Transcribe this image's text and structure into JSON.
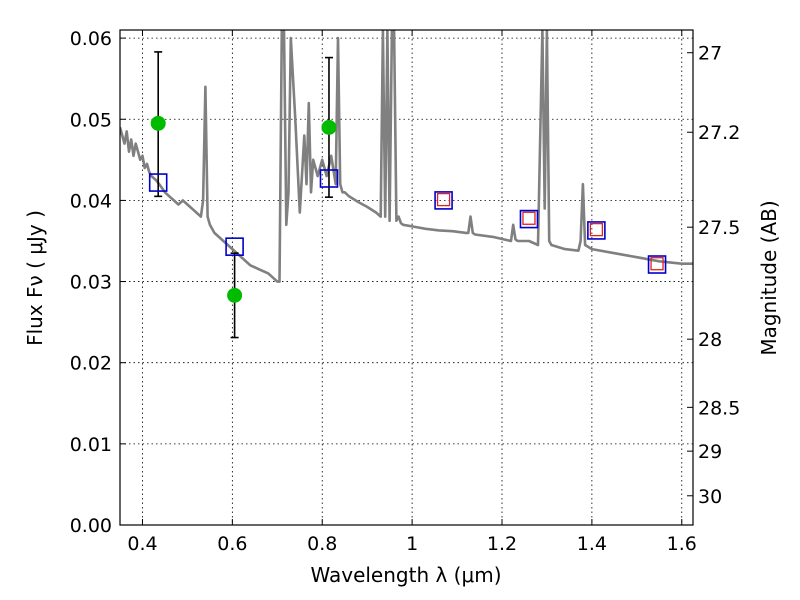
{
  "chart_data": {
    "type": "line",
    "xlabel": "Wavelength  λ (μm)",
    "ylabel": "Flux  Fν  ( μJy )",
    "y2label": "Magnitude (AB)",
    "xlim": [
      0.35,
      1.625
    ],
    "ylim": [
      0.0,
      0.061
    ],
    "grid": true,
    "x_ticks": [
      0.4,
      0.6,
      0.8,
      1.0,
      1.2,
      1.4,
      1.6
    ],
    "x_tick_labels": [
      "0.4",
      "0.6",
      "0.8",
      "1",
      "1.2",
      "1.4",
      "1.6"
    ],
    "y_ticks": [
      0.0,
      0.01,
      0.02,
      0.03,
      0.04,
      0.05,
      0.06
    ],
    "y_tick_labels": [
      "0.00",
      "0.01",
      "0.02",
      "0.03",
      "0.04",
      "0.05",
      "0.06"
    ],
    "y2_ticks": [
      {
        "label": "27",
        "flux": 0.0582
      },
      {
        "label": "27.2",
        "flux": 0.0484
      },
      {
        "label": "27.5",
        "flux": 0.0367
      },
      {
        "label": "28",
        "flux": 0.0229
      },
      {
        "label": "28.5",
        "flux": 0.0145
      },
      {
        "label": "29",
        "flux": 0.0091
      },
      {
        "label": "30",
        "flux": 0.0036
      }
    ],
    "colors": {
      "spectrum": "#808080",
      "observed": "#00bb00",
      "model_box": "#0000cc",
      "model_inner": "#dd2222",
      "errorbar": "#000000",
      "grid": "#000000"
    },
    "series": [
      {
        "style": "spectrum-line",
        "x": [
          0.35,
          0.36,
          0.365,
          0.37,
          0.375,
          0.38,
          0.385,
          0.39,
          0.395,
          0.4,
          0.405,
          0.41,
          0.415,
          0.42,
          0.43,
          0.44,
          0.45,
          0.46,
          0.47,
          0.48,
          0.49,
          0.5,
          0.51,
          0.52,
          0.53,
          0.535,
          0.54,
          0.545,
          0.55,
          0.56,
          0.58,
          0.6,
          0.62,
          0.64,
          0.66,
          0.68,
          0.7,
          0.705,
          0.71,
          0.715,
          0.72,
          0.725,
          0.73,
          0.74,
          0.75,
          0.76,
          0.765,
          0.77,
          0.775,
          0.78,
          0.79,
          0.8,
          0.81,
          0.82,
          0.83,
          0.835,
          0.84,
          0.845,
          0.85,
          0.86,
          0.88,
          0.9,
          0.92,
          0.93,
          0.935,
          0.94,
          0.945,
          0.95,
          0.955,
          0.96,
          0.965,
          0.97,
          0.975,
          0.98,
          1.0,
          1.03,
          1.06,
          1.09,
          1.12,
          1.125,
          1.13,
          1.135,
          1.14,
          1.18,
          1.22,
          1.225,
          1.23,
          1.235,
          1.24,
          1.26,
          1.28,
          1.29,
          1.295,
          1.3,
          1.305,
          1.31,
          1.34,
          1.37,
          1.375,
          1.38,
          1.385,
          1.4,
          1.45,
          1.5,
          1.55,
          1.6,
          1.625
        ],
        "y": [
          0.049,
          0.047,
          0.0485,
          0.046,
          0.0475,
          0.0455,
          0.047,
          0.046,
          0.045,
          0.0455,
          0.044,
          0.0445,
          0.0435,
          0.043,
          0.0425,
          0.0418,
          0.041,
          0.0405,
          0.04,
          0.0395,
          0.04,
          0.0395,
          0.039,
          0.0385,
          0.038,
          0.04,
          0.054,
          0.038,
          0.037,
          0.036,
          0.035,
          0.034,
          0.033,
          0.032,
          0.0315,
          0.031,
          0.03,
          0.03,
          0.061,
          0.061,
          0.037,
          0.041,
          0.06,
          0.05,
          0.0385,
          0.048,
          0.042,
          0.052,
          0.041,
          0.045,
          0.043,
          0.045,
          0.043,
          0.0455,
          0.042,
          0.06,
          0.042,
          0.041,
          0.041,
          0.0405,
          0.0398,
          0.0392,
          0.0385,
          0.038,
          0.061,
          0.038,
          0.061,
          0.0375,
          0.061,
          0.061,
          0.0375,
          0.038,
          0.0372,
          0.037,
          0.0368,
          0.0365,
          0.0363,
          0.0362,
          0.036,
          0.036,
          0.038,
          0.036,
          0.0358,
          0.0355,
          0.035,
          0.037,
          0.0352,
          0.035,
          0.035,
          0.035,
          0.0345,
          0.061,
          0.039,
          0.061,
          0.035,
          0.0345,
          0.034,
          0.0338,
          0.035,
          0.042,
          0.0345,
          0.034,
          0.0335,
          0.033,
          0.0325,
          0.0322,
          0.0322
        ]
      },
      {
        "style": "observed-points",
        "x": [
          0.435,
          0.605,
          0.815
        ],
        "y": [
          0.0495,
          0.0283,
          0.049
        ]
      },
      {
        "style": "error-bars",
        "x": [
          0.435,
          0.605,
          0.815
        ],
        "low": [
          0.0405,
          0.0231,
          0.0404
        ],
        "high": [
          0.0583,
          0.0335,
          0.0576
        ]
      },
      {
        "style": "model-boxes",
        "x": [
          0.435,
          0.605,
          0.815,
          1.07,
          1.26,
          1.41,
          1.545
        ],
        "y": [
          0.0422,
          0.0343,
          0.0427,
          0.04,
          0.0377,
          0.0363,
          0.0321
        ]
      },
      {
        "style": "model-inner-boxes",
        "x": [
          1.07,
          1.26,
          1.41,
          1.545
        ],
        "y": [
          0.0401,
          0.0378,
          0.0364,
          0.0322
        ]
      }
    ]
  }
}
